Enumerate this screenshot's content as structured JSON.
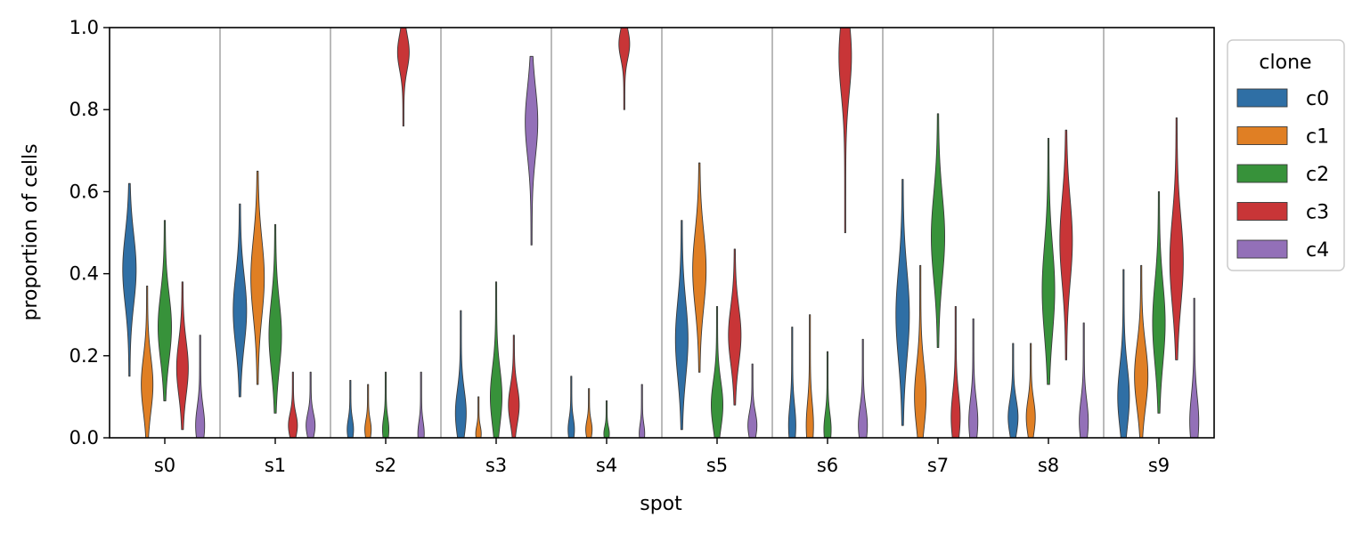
{
  "chart_data": {
    "type": "violin",
    "xlabel": "spot",
    "ylabel": "proportion of cells",
    "ylim": [
      0,
      1
    ],
    "yticks": [
      "0.0",
      "0.2",
      "0.4",
      "0.6",
      "0.8",
      "1.0"
    ],
    "categories": [
      "s0",
      "s1",
      "s2",
      "s3",
      "s4",
      "s5",
      "s6",
      "s7",
      "s8",
      "s9"
    ],
    "legend": {
      "title": "clone",
      "position": "outside-top-right"
    },
    "series": [
      {
        "name": "c0",
        "color": "#2f6fa5",
        "violins": [
          {
            "min": 0.15,
            "max": 0.62,
            "mode": 0.41,
            "peak": 0.7
          },
          {
            "min": 0.1,
            "max": 0.57,
            "mode": 0.31,
            "peak": 0.7
          },
          {
            "min": 0.0,
            "max": 0.14,
            "mode": 0.02,
            "peak": 0.3
          },
          {
            "min": 0.0,
            "max": 0.31,
            "mode": 0.06,
            "peak": 0.55
          },
          {
            "min": 0.0,
            "max": 0.15,
            "mode": 0.02,
            "peak": 0.3
          },
          {
            "min": 0.02,
            "max": 0.53,
            "mode": 0.24,
            "peak": 0.65
          },
          {
            "min": 0.0,
            "max": 0.27,
            "mode": 0.03,
            "peak": 0.35
          },
          {
            "min": 0.03,
            "max": 0.63,
            "mode": 0.3,
            "peak": 0.7
          },
          {
            "min": 0.0,
            "max": 0.23,
            "mode": 0.05,
            "peak": 0.5
          },
          {
            "min": 0.0,
            "max": 0.41,
            "mode": 0.1,
            "peak": 0.6
          }
        ]
      },
      {
        "name": "c1",
        "color": "#e07f24",
        "violins": [
          {
            "min": 0.0,
            "max": 0.37,
            "mode": 0.13,
            "peak": 0.6
          },
          {
            "min": 0.13,
            "max": 0.65,
            "mode": 0.39,
            "peak": 0.7
          },
          {
            "min": 0.0,
            "max": 0.13,
            "mode": 0.02,
            "peak": 0.3
          },
          {
            "min": 0.0,
            "max": 0.1,
            "mode": 0.01,
            "peak": 0.25
          },
          {
            "min": 0.0,
            "max": 0.12,
            "mode": 0.02,
            "peak": 0.3
          },
          {
            "min": 0.16,
            "max": 0.67,
            "mode": 0.41,
            "peak": 0.7
          },
          {
            "min": 0.0,
            "max": 0.3,
            "mode": 0.03,
            "peak": 0.35
          },
          {
            "min": 0.0,
            "max": 0.42,
            "mode": 0.1,
            "peak": 0.6
          },
          {
            "min": 0.0,
            "max": 0.23,
            "mode": 0.05,
            "peak": 0.45
          },
          {
            "min": 0.0,
            "max": 0.42,
            "mode": 0.15,
            "peak": 0.7
          }
        ]
      },
      {
        "name": "c2",
        "color": "#37923a",
        "violins": [
          {
            "min": 0.09,
            "max": 0.53,
            "mode": 0.27,
            "peak": 0.7
          },
          {
            "min": 0.06,
            "max": 0.52,
            "mode": 0.25,
            "peak": 0.65
          },
          {
            "min": 0.0,
            "max": 0.16,
            "mode": 0.02,
            "peak": 0.3
          },
          {
            "min": 0.0,
            "max": 0.38,
            "mode": 0.1,
            "peak": 0.6
          },
          {
            "min": 0.0,
            "max": 0.09,
            "mode": 0.01,
            "peak": 0.25
          },
          {
            "min": 0.0,
            "max": 0.32,
            "mode": 0.08,
            "peak": 0.6
          },
          {
            "min": 0.0,
            "max": 0.21,
            "mode": 0.02,
            "peak": 0.35
          },
          {
            "min": 0.22,
            "max": 0.79,
            "mode": 0.49,
            "peak": 0.7
          },
          {
            "min": 0.13,
            "max": 0.73,
            "mode": 0.36,
            "peak": 0.65
          },
          {
            "min": 0.06,
            "max": 0.6,
            "mode": 0.28,
            "peak": 0.65
          }
        ]
      },
      {
        "name": "c3",
        "color": "#c83537",
        "violins": [
          {
            "min": 0.02,
            "max": 0.38,
            "mode": 0.17,
            "peak": 0.6
          },
          {
            "min": 0.0,
            "max": 0.16,
            "mode": 0.03,
            "peak": 0.45
          },
          {
            "min": 0.76,
            "max": 1.0,
            "mode": 0.94,
            "peak": 0.6
          },
          {
            "min": 0.0,
            "max": 0.25,
            "mode": 0.08,
            "peak": 0.55
          },
          {
            "min": 0.8,
            "max": 1.0,
            "mode": 0.96,
            "peak": 0.55
          },
          {
            "min": 0.08,
            "max": 0.46,
            "mode": 0.25,
            "peak": 0.65
          },
          {
            "min": 0.5,
            "max": 1.0,
            "mode": 0.93,
            "peak": 0.65
          },
          {
            "min": 0.0,
            "max": 0.32,
            "mode": 0.05,
            "peak": 0.45
          },
          {
            "min": 0.19,
            "max": 0.75,
            "mode": 0.48,
            "peak": 0.65
          },
          {
            "min": 0.19,
            "max": 0.78,
            "mode": 0.43,
            "peak": 0.7
          }
        ]
      },
      {
        "name": "c4",
        "color": "#9370b8",
        "violins": [
          {
            "min": 0.0,
            "max": 0.25,
            "mode": 0.03,
            "peak": 0.45
          },
          {
            "min": 0.0,
            "max": 0.16,
            "mode": 0.03,
            "peak": 0.45
          },
          {
            "min": 0.0,
            "max": 0.16,
            "mode": 0.01,
            "peak": 0.3
          },
          {
            "min": 0.47,
            "max": 0.93,
            "mode": 0.77,
            "peak": 0.65
          },
          {
            "min": 0.0,
            "max": 0.13,
            "mode": 0.01,
            "peak": 0.25
          },
          {
            "min": 0.0,
            "max": 0.18,
            "mode": 0.03,
            "peak": 0.45
          },
          {
            "min": 0.0,
            "max": 0.24,
            "mode": 0.03,
            "peak": 0.45
          },
          {
            "min": 0.0,
            "max": 0.29,
            "mode": 0.04,
            "peak": 0.45
          },
          {
            "min": 0.0,
            "max": 0.28,
            "mode": 0.04,
            "peak": 0.45
          },
          {
            "min": 0.0,
            "max": 0.34,
            "mode": 0.04,
            "peak": 0.45
          }
        ]
      }
    ]
  }
}
